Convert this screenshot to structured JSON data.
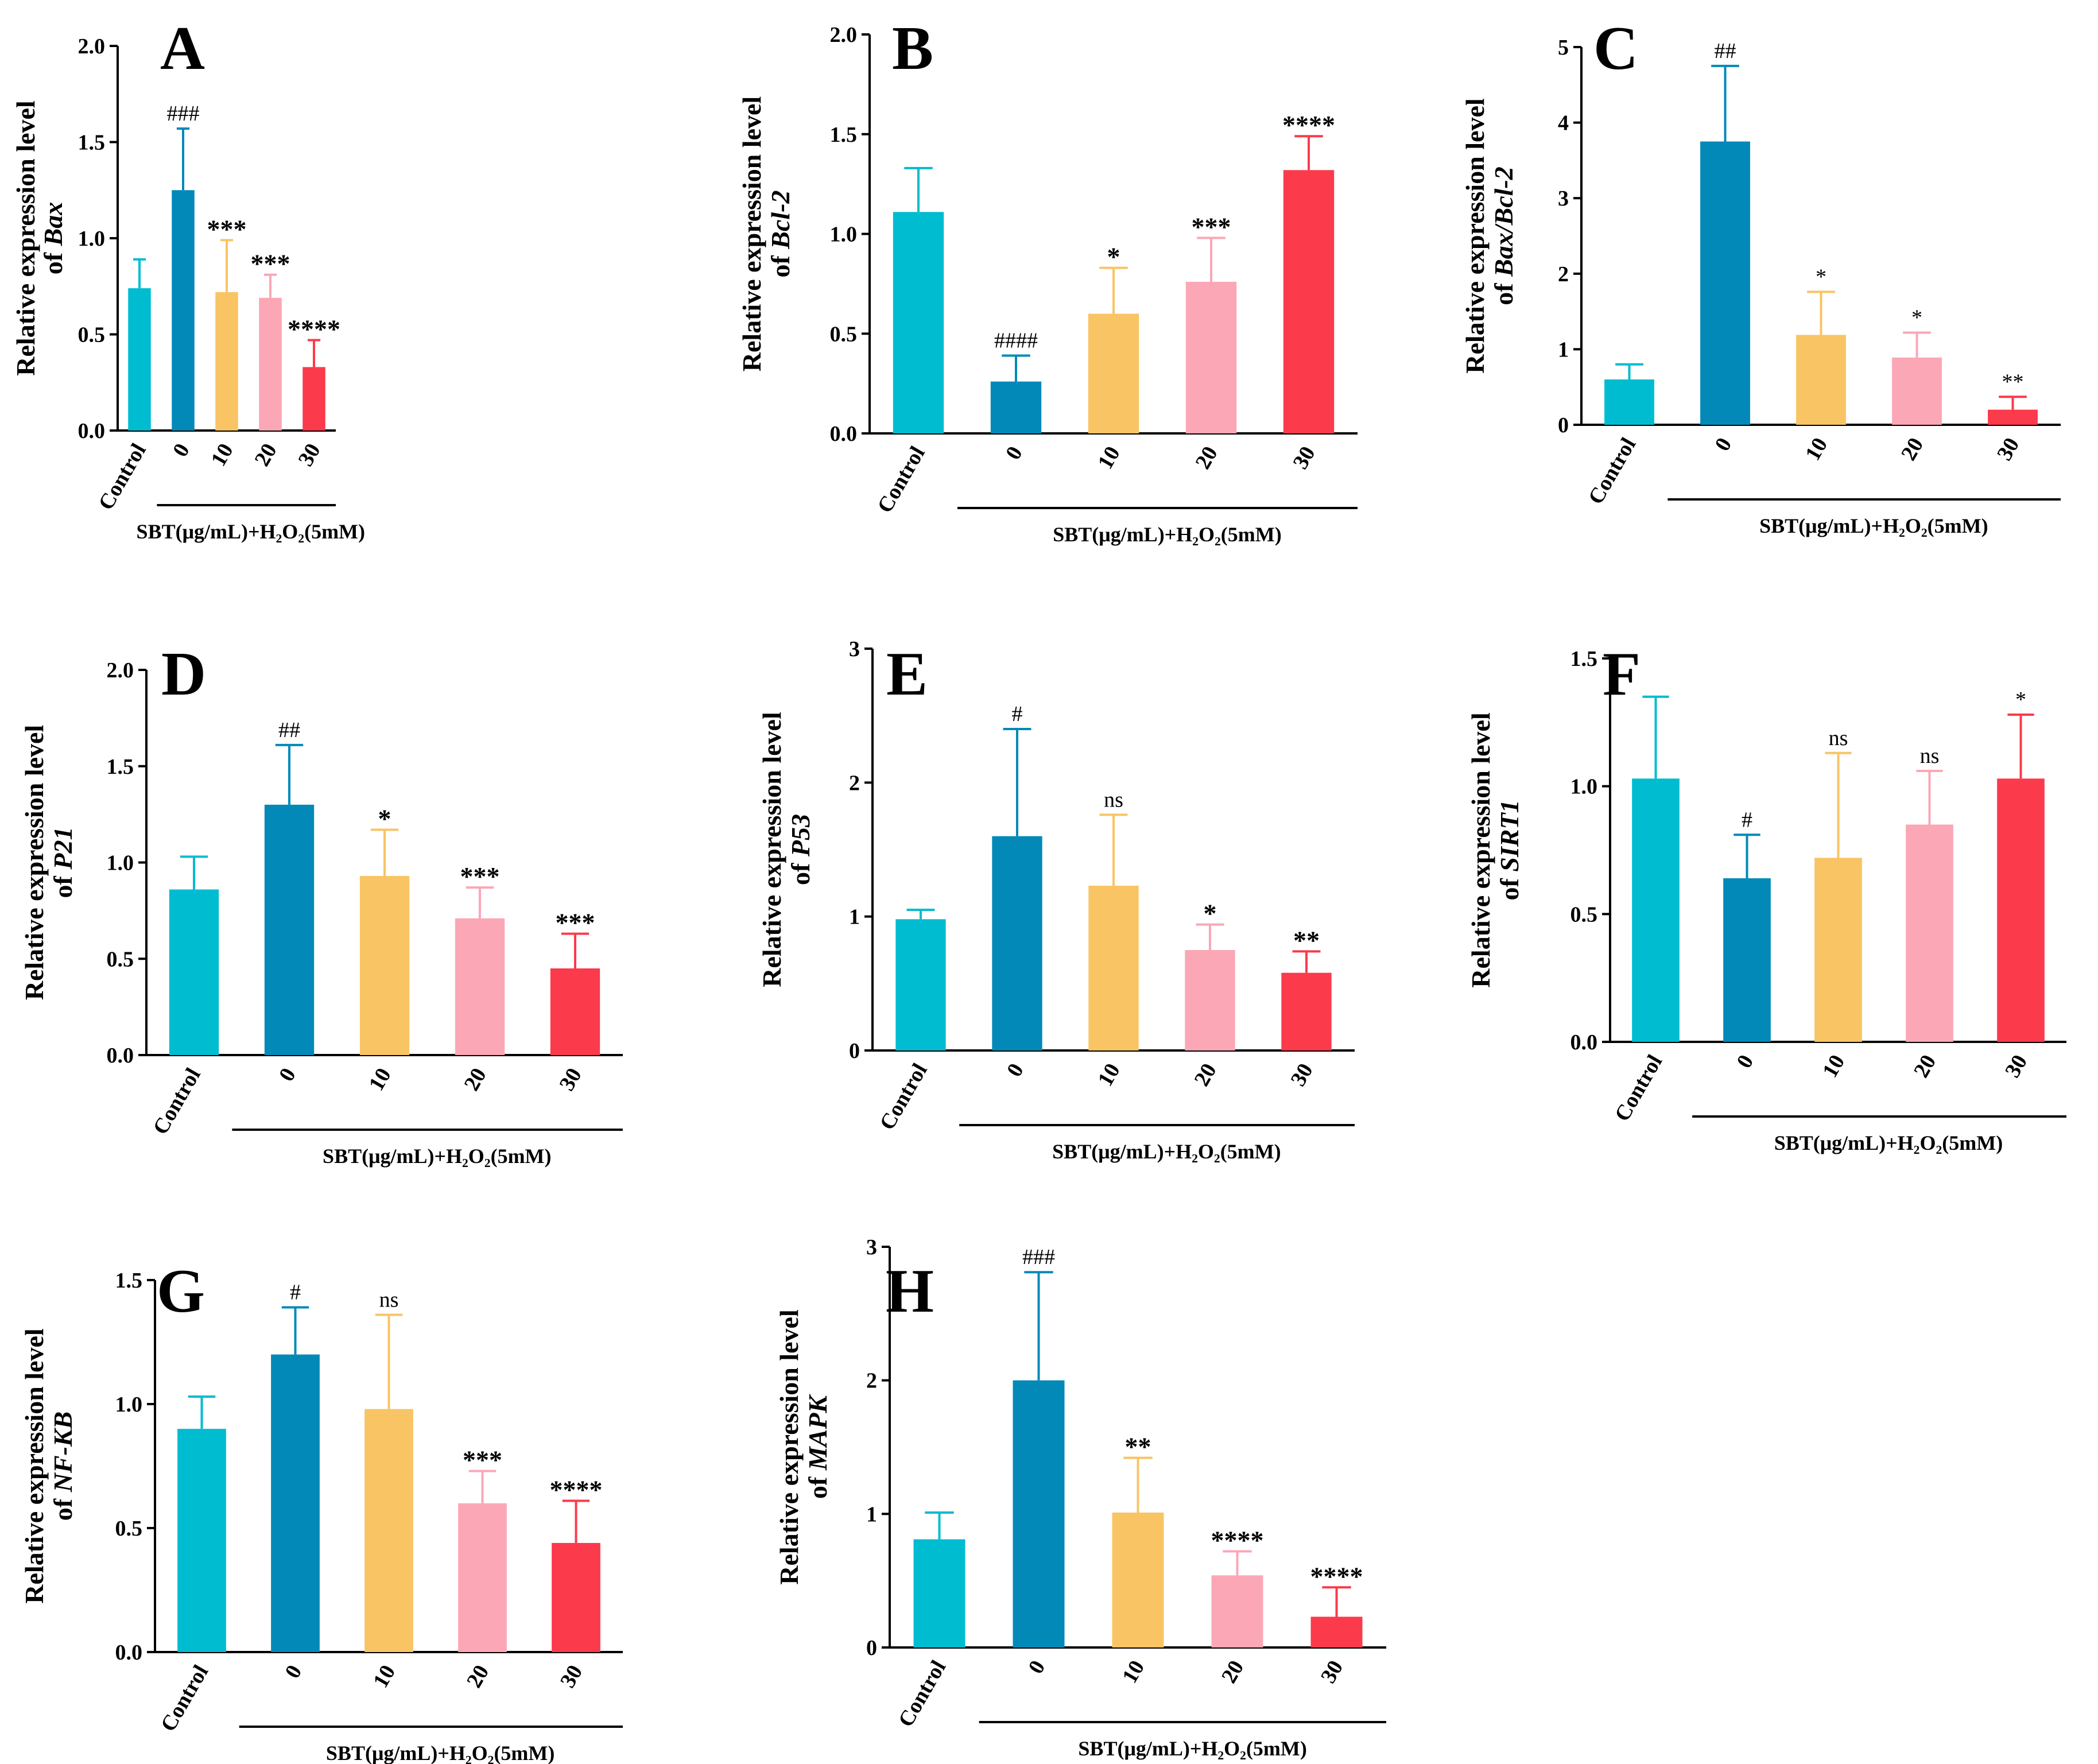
{
  "chart_data": [
    {
      "panel": "A",
      "type": "bar",
      "ylabel": "Relative expression level",
      "ylabel_gene": "Bax",
      "ylabel_prefix": "of ",
      "categories": [
        "Control",
        "0",
        "10",
        "20",
        "30"
      ],
      "values": [
        0.74,
        1.25,
        0.72,
        0.69,
        0.33
      ],
      "errors": [
        0.15,
        0.32,
        0.27,
        0.12,
        0.14
      ],
      "annotations": [
        "",
        "###",
        "***",
        "***",
        "****"
      ],
      "ylim": [
        0,
        2.0
      ],
      "yticks": [
        "0.0",
        "0.5",
        "1.0",
        "1.5",
        "2.0"
      ],
      "group_label": "SBT(μg/mL)+H₂O₂(5mM)"
    },
    {
      "panel": "B",
      "type": "bar",
      "ylabel": "Relative expression level",
      "ylabel_gene": "Bcl-2",
      "ylabel_prefix": "of ",
      "categories": [
        "Control",
        "0",
        "10",
        "20",
        "30"
      ],
      "values": [
        1.11,
        0.26,
        0.6,
        0.76,
        1.32
      ],
      "errors": [
        0.22,
        0.13,
        0.23,
        0.22,
        0.17
      ],
      "annotations": [
        "",
        "####",
        "*",
        "***",
        "****"
      ],
      "ylim": [
        0,
        2.0
      ],
      "yticks": [
        "0.0",
        "0.5",
        "1.0",
        "1.5",
        "2.0"
      ],
      "group_label": "SBT(μg/mL)+H₂O₂(5mM)"
    },
    {
      "panel": "C",
      "type": "bar",
      "ylabel": "Relative expression level",
      "ylabel_gene": "Bax/Bcl-2",
      "ylabel_prefix": "of ",
      "categories": [
        "Control",
        "0",
        "10",
        "20",
        "30"
      ],
      "values": [
        0.6,
        3.75,
        1.19,
        0.89,
        0.2
      ],
      "errors": [
        0.2,
        1.0,
        0.57,
        0.33,
        0.17
      ],
      "annotations": [
        "",
        "##",
        "*",
        "*",
        "**"
      ],
      "ylim": [
        0,
        5
      ],
      "yticks": [
        "0",
        "1",
        "2",
        "3",
        "4",
        "5"
      ],
      "group_label": "SBT(μg/mL)+H₂O₂(5mM)"
    },
    {
      "panel": "D",
      "type": "bar",
      "ylabel": "Relative expression level",
      "ylabel_gene": "P21",
      "ylabel_prefix": "of ",
      "categories": [
        "Control",
        "0",
        "10",
        "20",
        "30"
      ],
      "values": [
        0.86,
        1.3,
        0.93,
        0.71,
        0.45
      ],
      "errors": [
        0.17,
        0.31,
        0.24,
        0.16,
        0.18
      ],
      "annotations": [
        "",
        "##",
        "*",
        "***",
        "***"
      ],
      "ylim": [
        0,
        2.0
      ],
      "yticks": [
        "0.0",
        "0.5",
        "1.0",
        "1.5",
        "2.0"
      ],
      "group_label": "SBT(μg/mL)+H₂O₂(5mM)"
    },
    {
      "panel": "E",
      "type": "bar",
      "ylabel": "Relative expression level",
      "ylabel_gene": "P53",
      "ylabel_prefix": "of ",
      "categories": [
        "Control",
        "0",
        "10",
        "20",
        "30"
      ],
      "values": [
        0.98,
        1.6,
        1.23,
        0.75,
        0.58
      ],
      "errors": [
        0.07,
        0.8,
        0.53,
        0.19,
        0.16
      ],
      "annotations": [
        "",
        "#",
        "ns",
        "*",
        "**"
      ],
      "ylim": [
        0,
        3
      ],
      "yticks": [
        "0",
        "1",
        "2",
        "3"
      ],
      "group_label": "SBT(μg/mL)+H₂O₂(5mM)"
    },
    {
      "panel": "F",
      "type": "bar",
      "ylabel": "Relative expression level",
      "ylabel_gene": "SIRT1",
      "ylabel_prefix": "of ",
      "categories": [
        "Control",
        "0",
        "10",
        "20",
        "30"
      ],
      "values": [
        1.03,
        0.64,
        0.72,
        0.85,
        1.03
      ],
      "errors": [
        0.32,
        0.17,
        0.41,
        0.21,
        0.25
      ],
      "annotations": [
        "",
        "#",
        "ns",
        "ns",
        "*"
      ],
      "ylim": [
        0,
        1.5
      ],
      "yticks": [
        "0.0",
        "0.5",
        "1.0",
        "1.5"
      ],
      "group_label": "SBT(μg/mL)+H₂O₂(5mM)"
    },
    {
      "panel": "G",
      "type": "bar",
      "ylabel": "Relative expression level",
      "ylabel_gene": "NF-KB",
      "ylabel_prefix": "of ",
      "categories": [
        "Control",
        "0",
        "10",
        "20",
        "30"
      ],
      "values": [
        0.9,
        1.2,
        0.98,
        0.6,
        0.44
      ],
      "errors": [
        0.13,
        0.19,
        0.38,
        0.13,
        0.17
      ],
      "annotations": [
        "",
        "#",
        "ns",
        "***",
        "****"
      ],
      "ylim": [
        0,
        1.5
      ],
      "yticks": [
        "0.0",
        "0.5",
        "1.0",
        "1.5"
      ],
      "group_label": "SBT(μg/mL)+H₂O₂(5mM)"
    },
    {
      "panel": "H",
      "type": "bar",
      "ylabel": "Relative expression level",
      "ylabel_gene": "MAPK",
      "ylabel_prefix": "of ",
      "categories": [
        "Control",
        "0",
        "10",
        "20",
        "30"
      ],
      "values": [
        0.81,
        2.0,
        1.01,
        0.54,
        0.23
      ],
      "errors": [
        0.2,
        0.81,
        0.41,
        0.18,
        0.22
      ],
      "annotations": [
        "",
        "###",
        "**",
        "****",
        "****"
      ],
      "ylim": [
        0,
        3
      ],
      "yticks": [
        "0",
        "1",
        "2",
        "3"
      ],
      "group_label": "SBT(μg/mL)+H₂O₂(5mM)"
    }
  ],
  "colors": [
    "#00BCD0",
    "#0289B8",
    "#F9C464",
    "#FBA7B5",
    "#FB3A4B"
  ]
}
